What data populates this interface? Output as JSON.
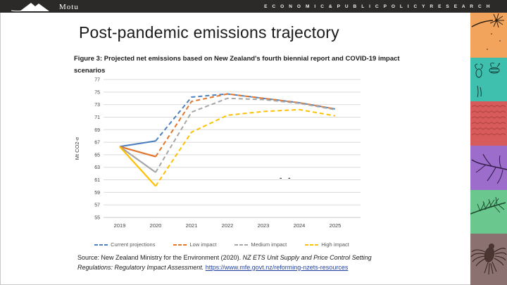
{
  "header": {
    "logo_text": "Motu",
    "tagline": "E C O N O M I C   &   P U B L I C   P O L I C Y   R E S E A R C H"
  },
  "slide": {
    "title": "Post-pandemic emissions trajectory",
    "figure_caption": "Figure 3: Projected net emissions based on New Zealand's fourth biennial report and COVID-19 impact scenarios"
  },
  "source": {
    "prefix": "Source: New Zealand Ministry for the Environment (2020). ",
    "work_title": "NZ ETS Unit Supply and Price Control Setting Regulations: Regulatory Impact Assessment. ",
    "link": "https://www.mfe.govt.nz/reforming-nzets-resources"
  },
  "chart_data": {
    "type": "line",
    "title": "",
    "xlabel": "",
    "ylabel": "Mt CO2-e",
    "x": [
      2019,
      2020,
      2021,
      2022,
      2023,
      2024,
      2025
    ],
    "ylim": [
      55,
      77
    ],
    "ytick_step": 2,
    "grid": true,
    "legend_position": "bottom",
    "line_style": "solid 2019-2020 (historical), dashed 2020-2025 (projected)",
    "series": [
      {
        "name": "Current projections",
        "color": "#4e81bd",
        "values": [
          66.3,
          67.2,
          74.2,
          74.7,
          74.0,
          73.3,
          72.3
        ]
      },
      {
        "name": "Low impact",
        "color": "#e1762c",
        "values": [
          66.3,
          64.7,
          73.5,
          74.7,
          74.0,
          73.3,
          72.3
        ]
      },
      {
        "name": "Medium impact",
        "color": "#a6a6a6",
        "values": [
          66.3,
          62.2,
          71.8,
          74.0,
          73.8,
          73.2,
          72.2
        ]
      },
      {
        "name": "High impact",
        "color": "#ffc000",
        "values": [
          66.3,
          60.0,
          68.6,
          71.3,
          71.9,
          72.2,
          71.2
        ]
      }
    ],
    "annotation": "- -"
  },
  "strip": {
    "blocks": [
      {
        "icon": "dandelion-illustration",
        "color": "#f2a45d",
        "height": 64
      },
      {
        "icon": "bee-illustration",
        "color": "#3fbfae",
        "height": 62
      },
      {
        "icon": "texture-illustration",
        "color": "#d85b5b",
        "height": 63
      },
      {
        "icon": "branch-illustration",
        "color": "#9c6dcb",
        "height": 63
      },
      {
        "icon": "pine-illustration",
        "color": "#6ac88e",
        "height": 62
      },
      {
        "icon": "bird-illustration",
        "color": "#8b7170",
        "height": 73
      }
    ]
  }
}
